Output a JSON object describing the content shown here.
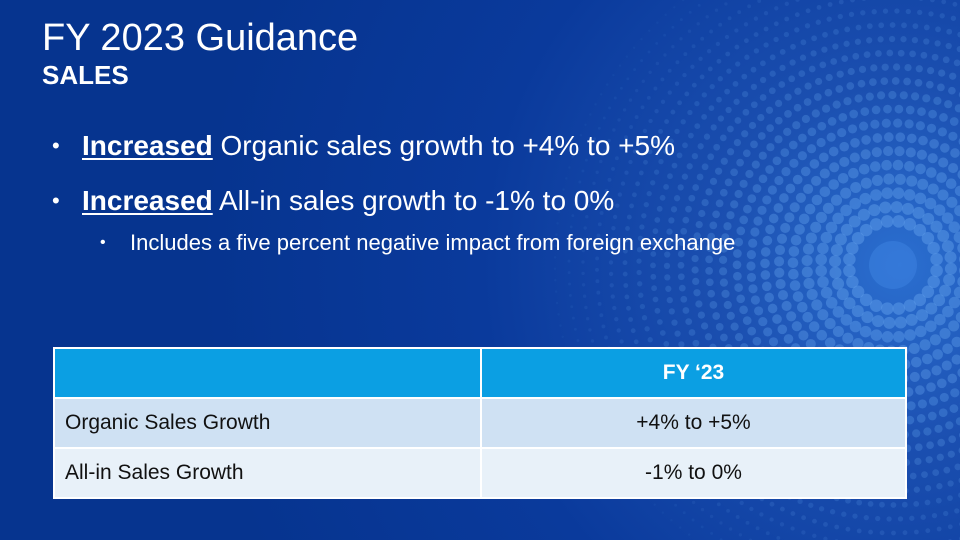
{
  "slide": {
    "title": "FY 2023 Guidance",
    "subtitle": "SALES",
    "bullets": [
      {
        "marker": "•",
        "emphasis": "Increased",
        "text": " Organic sales growth to +4% to +5%"
      },
      {
        "marker": "•",
        "emphasis": "Increased",
        "text": " All-in sales growth to -1% to 0%"
      }
    ],
    "sub_bullets": [
      {
        "marker": "•",
        "text": "Includes a five percent negative impact from foreign exchange"
      }
    ]
  },
  "table": {
    "header": [
      "",
      "FY ‘23"
    ],
    "rows": [
      {
        "label": "Organic Sales Growth",
        "value": "+4% to +5%"
      },
      {
        "label": "All-in Sales Growth",
        "value": "-1% to 0%"
      }
    ]
  },
  "colors": {
    "background": "#0a3a9c",
    "table_header": "#0b9fe3",
    "row_odd": "#cfe1f3",
    "row_even": "#e8f1f9"
  }
}
